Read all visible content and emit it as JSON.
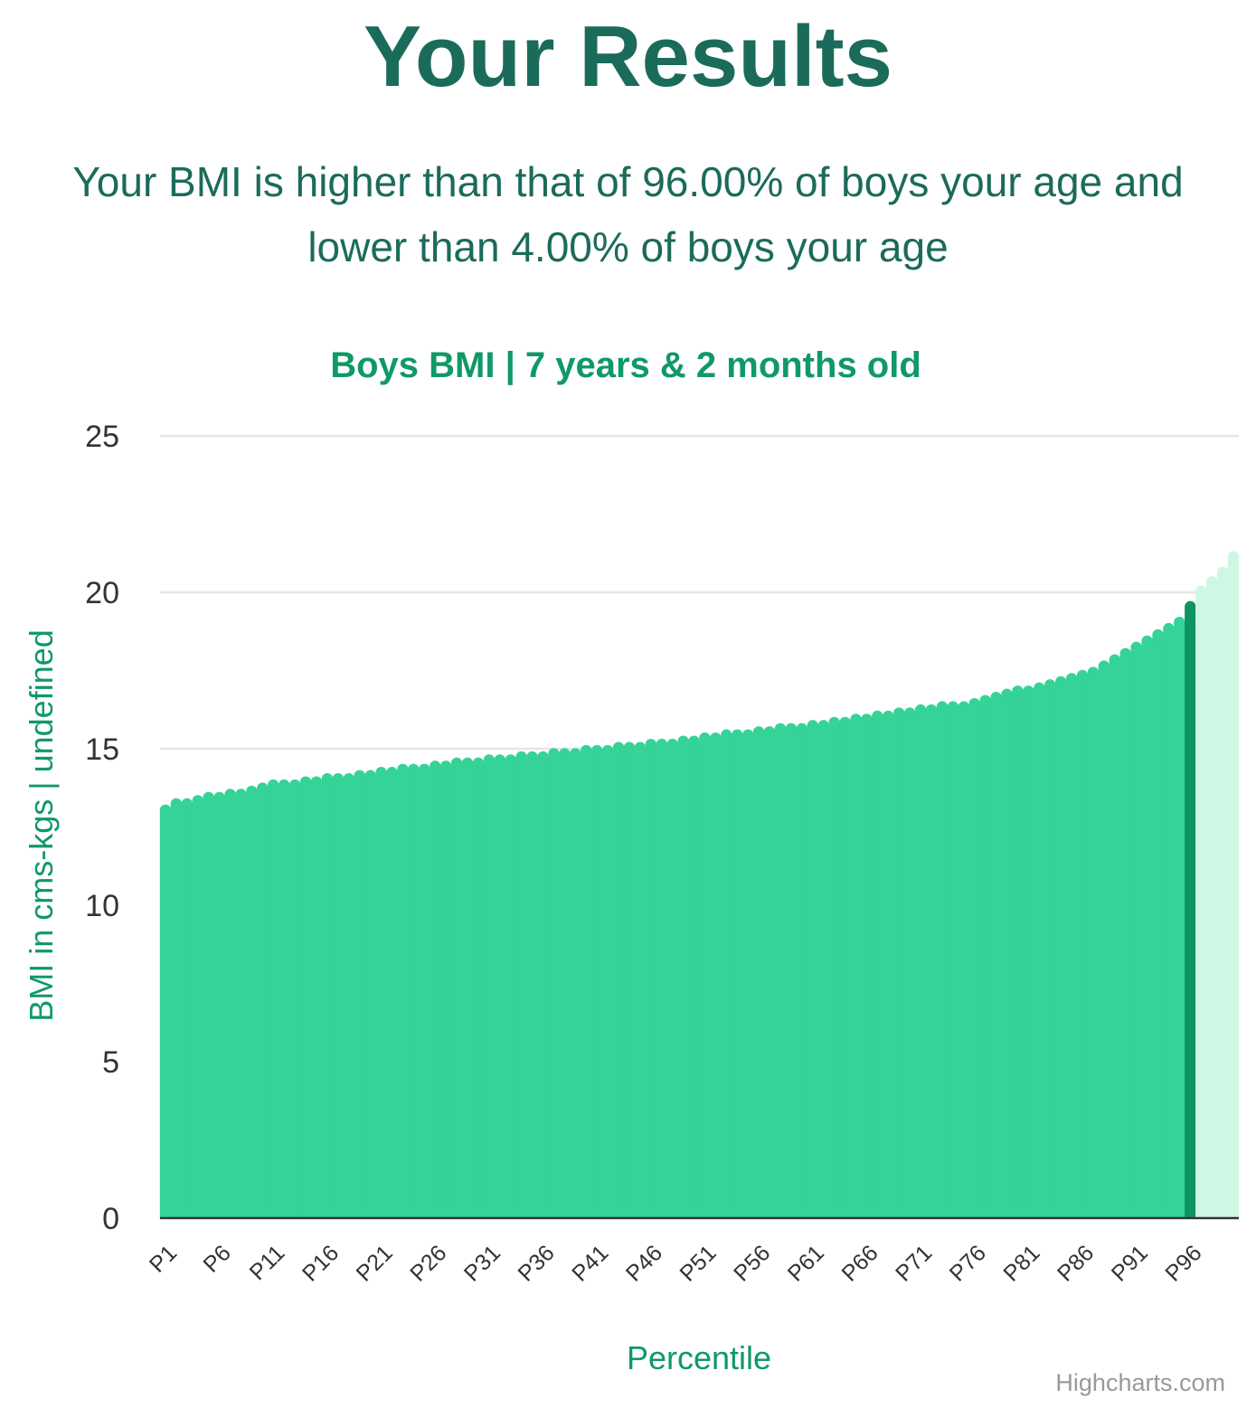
{
  "header": {
    "title": "Your Results",
    "summary": "Your BMI is higher than that of 96.00% of boys your age and lower than 4.00% of boys your age"
  },
  "credit": "Highcharts.com",
  "colors": {
    "title": "#1b6b5a",
    "accent": "#0f9966",
    "bar_below": "#35d398",
    "bar_current": "#0e9463",
    "bar_above": "#cff8e4",
    "grid": "#e6e6e6"
  },
  "chart_data": {
    "type": "bar",
    "title": "Boys BMI | 7 years & 2 months old",
    "xlabel": "Percentile",
    "ylabel": "BMI in cms-kgs | undefined",
    "ylim": [
      0,
      25
    ],
    "yticks": [
      0,
      5,
      10,
      15,
      20,
      25
    ],
    "grid": true,
    "highlight_category": "P96",
    "categories": [
      "P1",
      "P2",
      "P3",
      "P4",
      "P5",
      "P6",
      "P7",
      "P8",
      "P9",
      "P10",
      "P11",
      "P12",
      "P13",
      "P14",
      "P15",
      "P16",
      "P17",
      "P18",
      "P19",
      "P20",
      "P21",
      "P22",
      "P23",
      "P24",
      "P25",
      "P26",
      "P27",
      "P28",
      "P29",
      "P30",
      "P31",
      "P32",
      "P33",
      "P34",
      "P35",
      "P36",
      "P37",
      "P38",
      "P39",
      "P40",
      "P41",
      "P42",
      "P43",
      "P44",
      "P45",
      "P46",
      "P47",
      "P48",
      "P49",
      "P50",
      "P51",
      "P52",
      "P53",
      "P54",
      "P55",
      "P56",
      "P57",
      "P58",
      "P59",
      "P60",
      "P61",
      "P62",
      "P63",
      "P64",
      "P65",
      "P66",
      "P67",
      "P68",
      "P69",
      "P70",
      "P71",
      "P72",
      "P73",
      "P74",
      "P75",
      "P76",
      "P77",
      "P78",
      "P79",
      "P80",
      "P81",
      "P82",
      "P83",
      "P84",
      "P85",
      "P86",
      "P87",
      "P88",
      "P89",
      "P90",
      "P91",
      "P92",
      "P93",
      "P94",
      "P95",
      "P96",
      "P97",
      "P98",
      "P99",
      "P100"
    ],
    "xtick_labels": [
      "P1",
      "P6",
      "P11",
      "P16",
      "P21",
      "P26",
      "P31",
      "P36",
      "P41",
      "P46",
      "P51",
      "P56",
      "P61",
      "P66",
      "P71",
      "P76",
      "P81",
      "P86",
      "P91",
      "P96"
    ],
    "values": [
      13.2,
      13.4,
      13.4,
      13.5,
      13.6,
      13.6,
      13.7,
      13.7,
      13.8,
      13.9,
      14.0,
      14.0,
      14.0,
      14.1,
      14.1,
      14.2,
      14.2,
      14.2,
      14.3,
      14.3,
      14.4,
      14.4,
      14.5,
      14.5,
      14.5,
      14.6,
      14.6,
      14.7,
      14.7,
      14.7,
      14.8,
      14.8,
      14.8,
      14.9,
      14.9,
      14.9,
      15.0,
      15.0,
      15.0,
      15.1,
      15.1,
      15.1,
      15.2,
      15.2,
      15.2,
      15.3,
      15.3,
      15.3,
      15.4,
      15.4,
      15.5,
      15.5,
      15.6,
      15.6,
      15.6,
      15.7,
      15.7,
      15.8,
      15.8,
      15.8,
      15.9,
      15.9,
      16.0,
      16.0,
      16.1,
      16.1,
      16.2,
      16.2,
      16.3,
      16.3,
      16.4,
      16.4,
      16.5,
      16.5,
      16.5,
      16.6,
      16.7,
      16.8,
      16.9,
      17.0,
      17.0,
      17.1,
      17.2,
      17.3,
      17.4,
      17.5,
      17.6,
      17.8,
      18.0,
      18.2,
      18.4,
      18.6,
      18.8,
      19.0,
      19.2,
      19.7,
      20.2,
      20.5,
      20.8,
      21.3
    ]
  }
}
